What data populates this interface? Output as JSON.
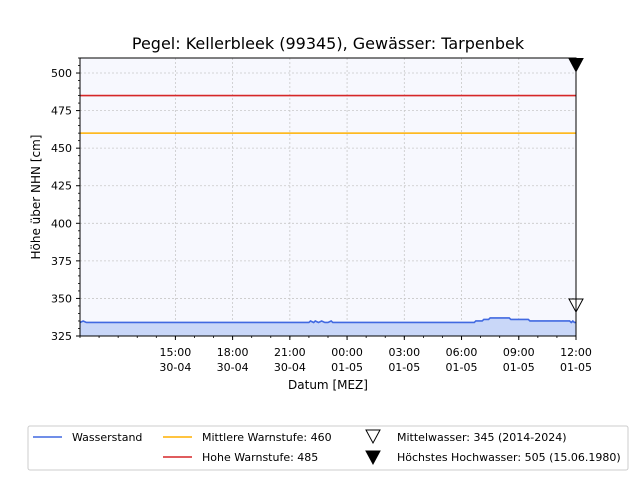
{
  "chart_data": {
    "type": "line",
    "title": "Pegel:  Kellerbleek (99345), Gewässer:  Tarpenbek",
    "xlabel": "Datum [MEZ]",
    "ylabel": "Höhe über NHN [cm]",
    "ylim": [
      325,
      510
    ],
    "xlim": [
      "2024-04-30T10:00",
      "2024-05-01T12:00"
    ],
    "yticks": [
      325,
      350,
      375,
      400,
      425,
      450,
      475,
      500
    ],
    "xticks": [
      {
        "time": "2024-04-30T15:00",
        "line1": "15:00",
        "line2": "30-04"
      },
      {
        "time": "2024-04-30T18:00",
        "line1": "18:00",
        "line2": "30-04"
      },
      {
        "time": "2024-04-30T21:00",
        "line1": "21:00",
        "line2": "30-04"
      },
      {
        "time": "2024-05-01T00:00",
        "line1": "00:00",
        "line2": "01-05"
      },
      {
        "time": "2024-05-01T03:00",
        "line1": "03:00",
        "line2": "01-05"
      },
      {
        "time": "2024-05-01T06:00",
        "line1": "06:00",
        "line2": "01-05"
      },
      {
        "time": "2024-05-01T09:00",
        "line1": "09:00",
        "line2": "01-05"
      },
      {
        "time": "2024-05-01T12:00",
        "line1": "12:00",
        "line2": "01-05"
      }
    ],
    "grid": true,
    "legend_position": "bottom",
    "series": [
      {
        "name": "Wasserstand",
        "color": "#4169e1",
        "fill": "#c9d7f8",
        "points": [
          [
            "2024-04-30T10:00",
            334
          ],
          [
            "2024-04-30T10:10",
            335
          ],
          [
            "2024-04-30T10:20",
            334
          ],
          [
            "2024-04-30T22:00",
            334
          ],
          [
            "2024-04-30T22:05",
            335
          ],
          [
            "2024-04-30T22:15",
            334
          ],
          [
            "2024-04-30T22:20",
            335
          ],
          [
            "2024-04-30T22:30",
            334
          ],
          [
            "2024-04-30T22:40",
            335
          ],
          [
            "2024-04-30T22:50",
            334
          ],
          [
            "2024-04-30T23:00",
            334
          ],
          [
            "2024-04-30T23:10",
            335
          ],
          [
            "2024-04-30T23:15",
            334
          ],
          [
            "2024-05-01T06:40",
            334
          ],
          [
            "2024-05-01T06:45",
            335
          ],
          [
            "2024-05-01T07:05",
            335
          ],
          [
            "2024-05-01T07:10",
            336
          ],
          [
            "2024-05-01T07:25",
            336
          ],
          [
            "2024-05-01T07:30",
            337
          ],
          [
            "2024-05-01T08:30",
            337
          ],
          [
            "2024-05-01T08:35",
            336
          ],
          [
            "2024-05-01T09:30",
            336
          ],
          [
            "2024-05-01T09:35",
            335
          ],
          [
            "2024-05-01T11:40",
            335
          ],
          [
            "2024-05-01T11:45",
            334
          ],
          [
            "2024-05-01T11:50",
            335
          ],
          [
            "2024-05-01T11:55",
            334
          ],
          [
            "2024-05-01T12:00",
            334
          ]
        ]
      },
      {
        "name": "Mittlere Warnstufe: 460",
        "color": "#ffb000",
        "value": 460
      },
      {
        "name": "Hohe Warnstufe: 485",
        "color": "#d62728",
        "value": 485
      }
    ],
    "markers": [
      {
        "name": "Mittelwasser: 345 (2014-2024)",
        "value": 345,
        "time": "2024-05-01T12:00",
        "style": "open-triangle-down"
      },
      {
        "name": "Höchstes Hochwasser: 505 (15.06.1980)",
        "value": 505,
        "time": "2024-05-01T12:00",
        "style": "filled-triangle-down"
      }
    ],
    "plot_background": "#f7f8fe"
  }
}
